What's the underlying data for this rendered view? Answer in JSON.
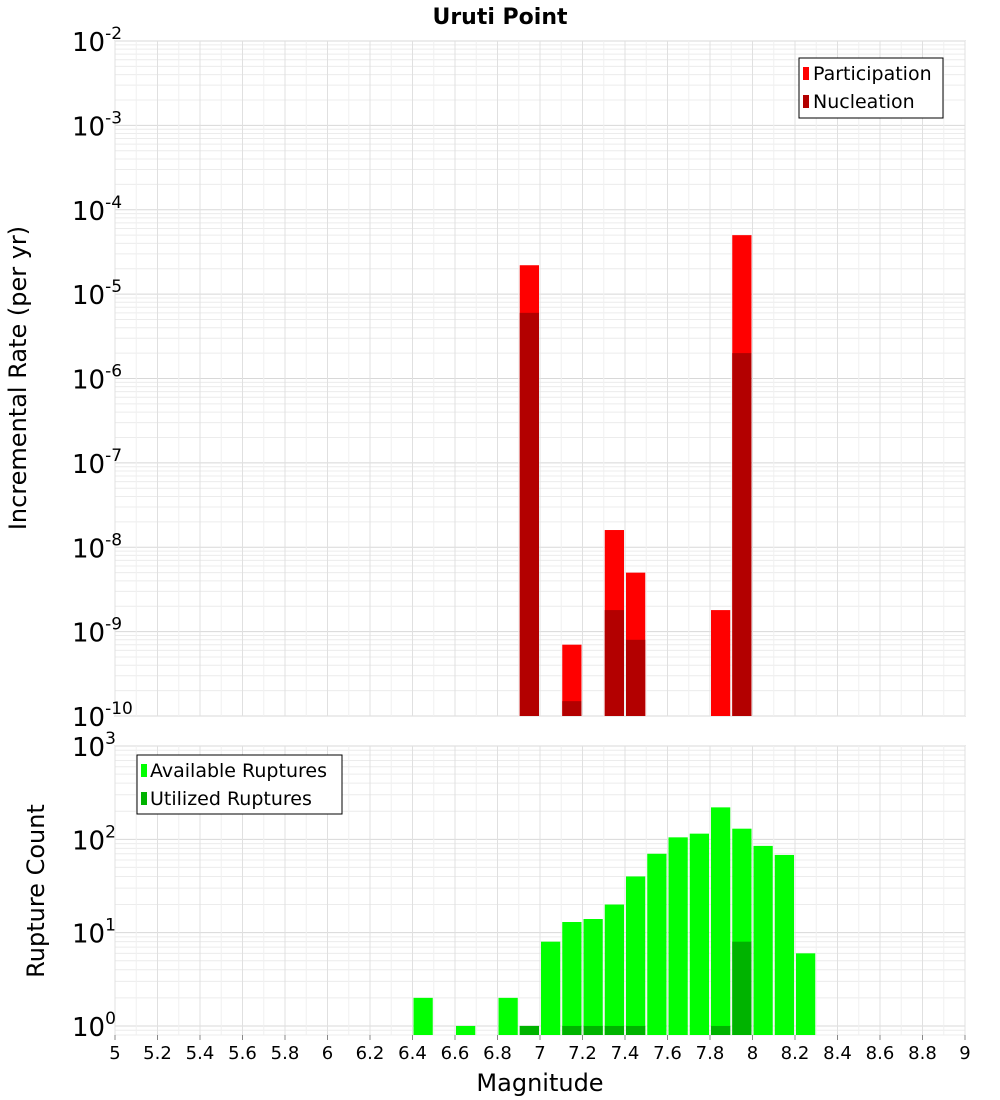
{
  "title": "Uruti Point",
  "xlabel": "Magnitude",
  "x_ticks": [
    "5",
    "5.2",
    "5.4",
    "5.6",
    "5.8",
    "6",
    "6.2",
    "6.4",
    "6.6",
    "6.8",
    "7",
    "7.2",
    "7.4",
    "7.6",
    "7.8",
    "8",
    "8.2",
    "8.4",
    "8.6",
    "8.8",
    "9"
  ],
  "chart_data": [
    {
      "type": "bar",
      "ylabel": "Incremental Rate (per yr)",
      "yscale": "log",
      "ylim": [
        1e-10,
        0.01
      ],
      "xlim": [
        5,
        9
      ],
      "bar_width": 0.1,
      "grid": true,
      "legend_position": "top-right",
      "y_ticks": [
        {
          "base": "10",
          "exp": "-10"
        },
        {
          "base": "10",
          "exp": "-9"
        },
        {
          "base": "10",
          "exp": "-8"
        },
        {
          "base": "10",
          "exp": "-7"
        },
        {
          "base": "10",
          "exp": "-6"
        },
        {
          "base": "10",
          "exp": "-5"
        },
        {
          "base": "10",
          "exp": "-4"
        },
        {
          "base": "10",
          "exp": "-3"
        },
        {
          "base": "10",
          "exp": "-2"
        }
      ],
      "series": [
        {
          "name": "Participation",
          "color": "#ff0000",
          "x": [
            6.95,
            7.15,
            7.35,
            7.45,
            7.85,
            7.95
          ],
          "values": [
            2.2e-05,
            7e-10,
            1.6e-08,
            5e-09,
            1.8e-09,
            5e-05
          ]
        },
        {
          "name": "Nucleation",
          "color": "#b30000",
          "x": [
            6.95,
            7.15,
            7.35,
            7.45,
            7.95
          ],
          "values": [
            6e-06,
            1.5e-10,
            1.8e-09,
            8e-10,
            2e-06
          ]
        }
      ]
    },
    {
      "type": "bar",
      "ylabel": "Rupture Count",
      "yscale": "log",
      "ylim": [
        0.8,
        1000
      ],
      "xlim": [
        5,
        9
      ],
      "bar_width": 0.1,
      "grid": true,
      "legend_position": "top-left",
      "y_ticks": [
        {
          "base": "10",
          "exp": "0"
        },
        {
          "base": "10",
          "exp": "1"
        },
        {
          "base": "10",
          "exp": "2"
        },
        {
          "base": "10",
          "exp": "3"
        }
      ],
      "series": [
        {
          "name": "Available Ruptures",
          "color": "#00ff00",
          "x": [
            6.45,
            6.65,
            6.85,
            6.95,
            7.05,
            7.15,
            7.25,
            7.35,
            7.45,
            7.55,
            7.65,
            7.75,
            7.85,
            7.95,
            8.05,
            8.15,
            8.25
          ],
          "values": [
            2,
            1,
            2,
            1,
            8,
            13,
            14,
            20,
            40,
            70,
            105,
            115,
            220,
            130,
            85,
            68,
            6
          ]
        },
        {
          "name": "Utilized Ruptures",
          "color": "#00b300",
          "x": [
            6.95,
            7.15,
            7.25,
            7.35,
            7.45,
            7.85,
            7.95
          ],
          "values": [
            1,
            1,
            1,
            1,
            1,
            1,
            8
          ]
        }
      ]
    }
  ]
}
